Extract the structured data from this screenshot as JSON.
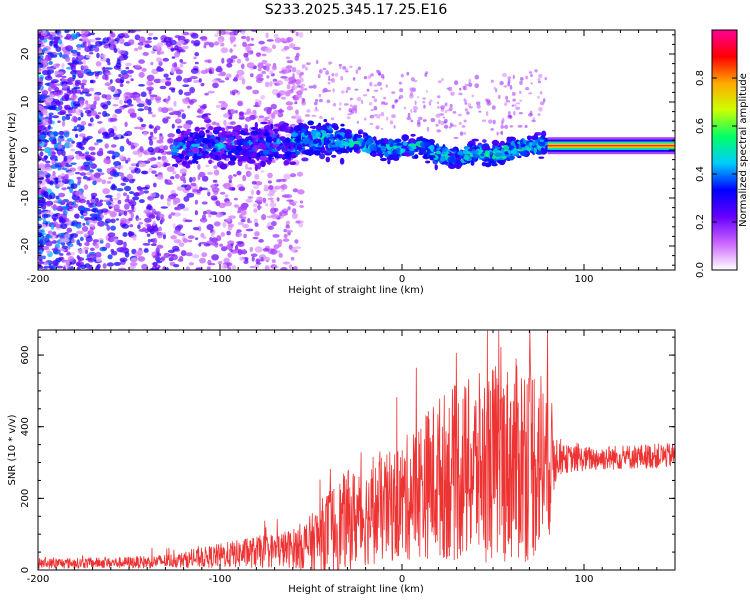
{
  "title": "S233.2025.345.17.25.E16",
  "chart_data": [
    {
      "type": "heatmap",
      "name": "spectrogram",
      "xlabel": "Height of straight line (km)",
      "ylabel": "Frequency (Hz)",
      "xlim": [
        -200,
        150
      ],
      "ylim": [
        -25,
        25
      ],
      "xticks": [
        -200,
        -100,
        0,
        100
      ],
      "yticks": [
        -20,
        -10,
        0,
        10,
        20
      ],
      "colorbar": {
        "label": "Normalized spectral amplitude",
        "range": [
          0,
          1
        ],
        "ticks": [
          "0.0",
          "0.2",
          "0.4",
          "0.6",
          "0.8"
        ],
        "tick_values": [
          0.0,
          0.2,
          0.4,
          0.6,
          0.8
        ],
        "colors": [
          "#ffffff",
          "#cc66ff",
          "#6600ff",
          "#0000ff",
          "#00ccff",
          "#00ff66",
          "#ccff00",
          "#ffaa00",
          "#ff0000",
          "#ff0099"
        ]
      },
      "ridge": {
        "x": [
          -120,
          -100,
          -80,
          -60,
          -50,
          -40,
          -30,
          -20,
          -10,
          0,
          10,
          20,
          30,
          40,
          50,
          60,
          70,
          80,
          100,
          120,
          150
        ],
        "freq": [
          0.5,
          0.8,
          1.0,
          1.5,
          2.5,
          2.5,
          2.0,
          1.0,
          0.3,
          0.3,
          0.8,
          -1.0,
          -1.5,
          -0.5,
          -1.0,
          0.0,
          1.0,
          1.0,
          0.9,
          0.9,
          0.9
        ]
      }
    },
    {
      "type": "line",
      "name": "snr",
      "xlabel": "Height of straight line (km)",
      "ylabel": "SNR (10 * v/v)",
      "xlim": [
        -200,
        150
      ],
      "ylim": [
        0,
        670
      ],
      "xticks": [
        -200,
        -100,
        0,
        100
      ],
      "yticks": [
        0,
        200,
        400,
        600
      ],
      "color": "#ee3333",
      "envelope": {
        "x": [
          -200,
          -160,
          -140,
          -120,
          -100,
          -80,
          -60,
          -50,
          -40,
          -30,
          -20,
          -10,
          0,
          10,
          20,
          30,
          40,
          50,
          60,
          70,
          80,
          85,
          90,
          100,
          120,
          150
        ],
        "mean": [
          18,
          20,
          22,
          28,
          40,
          50,
          60,
          75,
          110,
          140,
          150,
          170,
          190,
          230,
          260,
          270,
          280,
          300,
          300,
          320,
          300,
          320,
          310,
          310,
          315,
          320
        ],
        "spread": [
          15,
          15,
          18,
          22,
          35,
          45,
          55,
          80,
          120,
          140,
          140,
          150,
          170,
          200,
          230,
          250,
          260,
          280,
          280,
          300,
          250,
          60,
          40,
          35,
          35,
          35
        ]
      }
    }
  ]
}
